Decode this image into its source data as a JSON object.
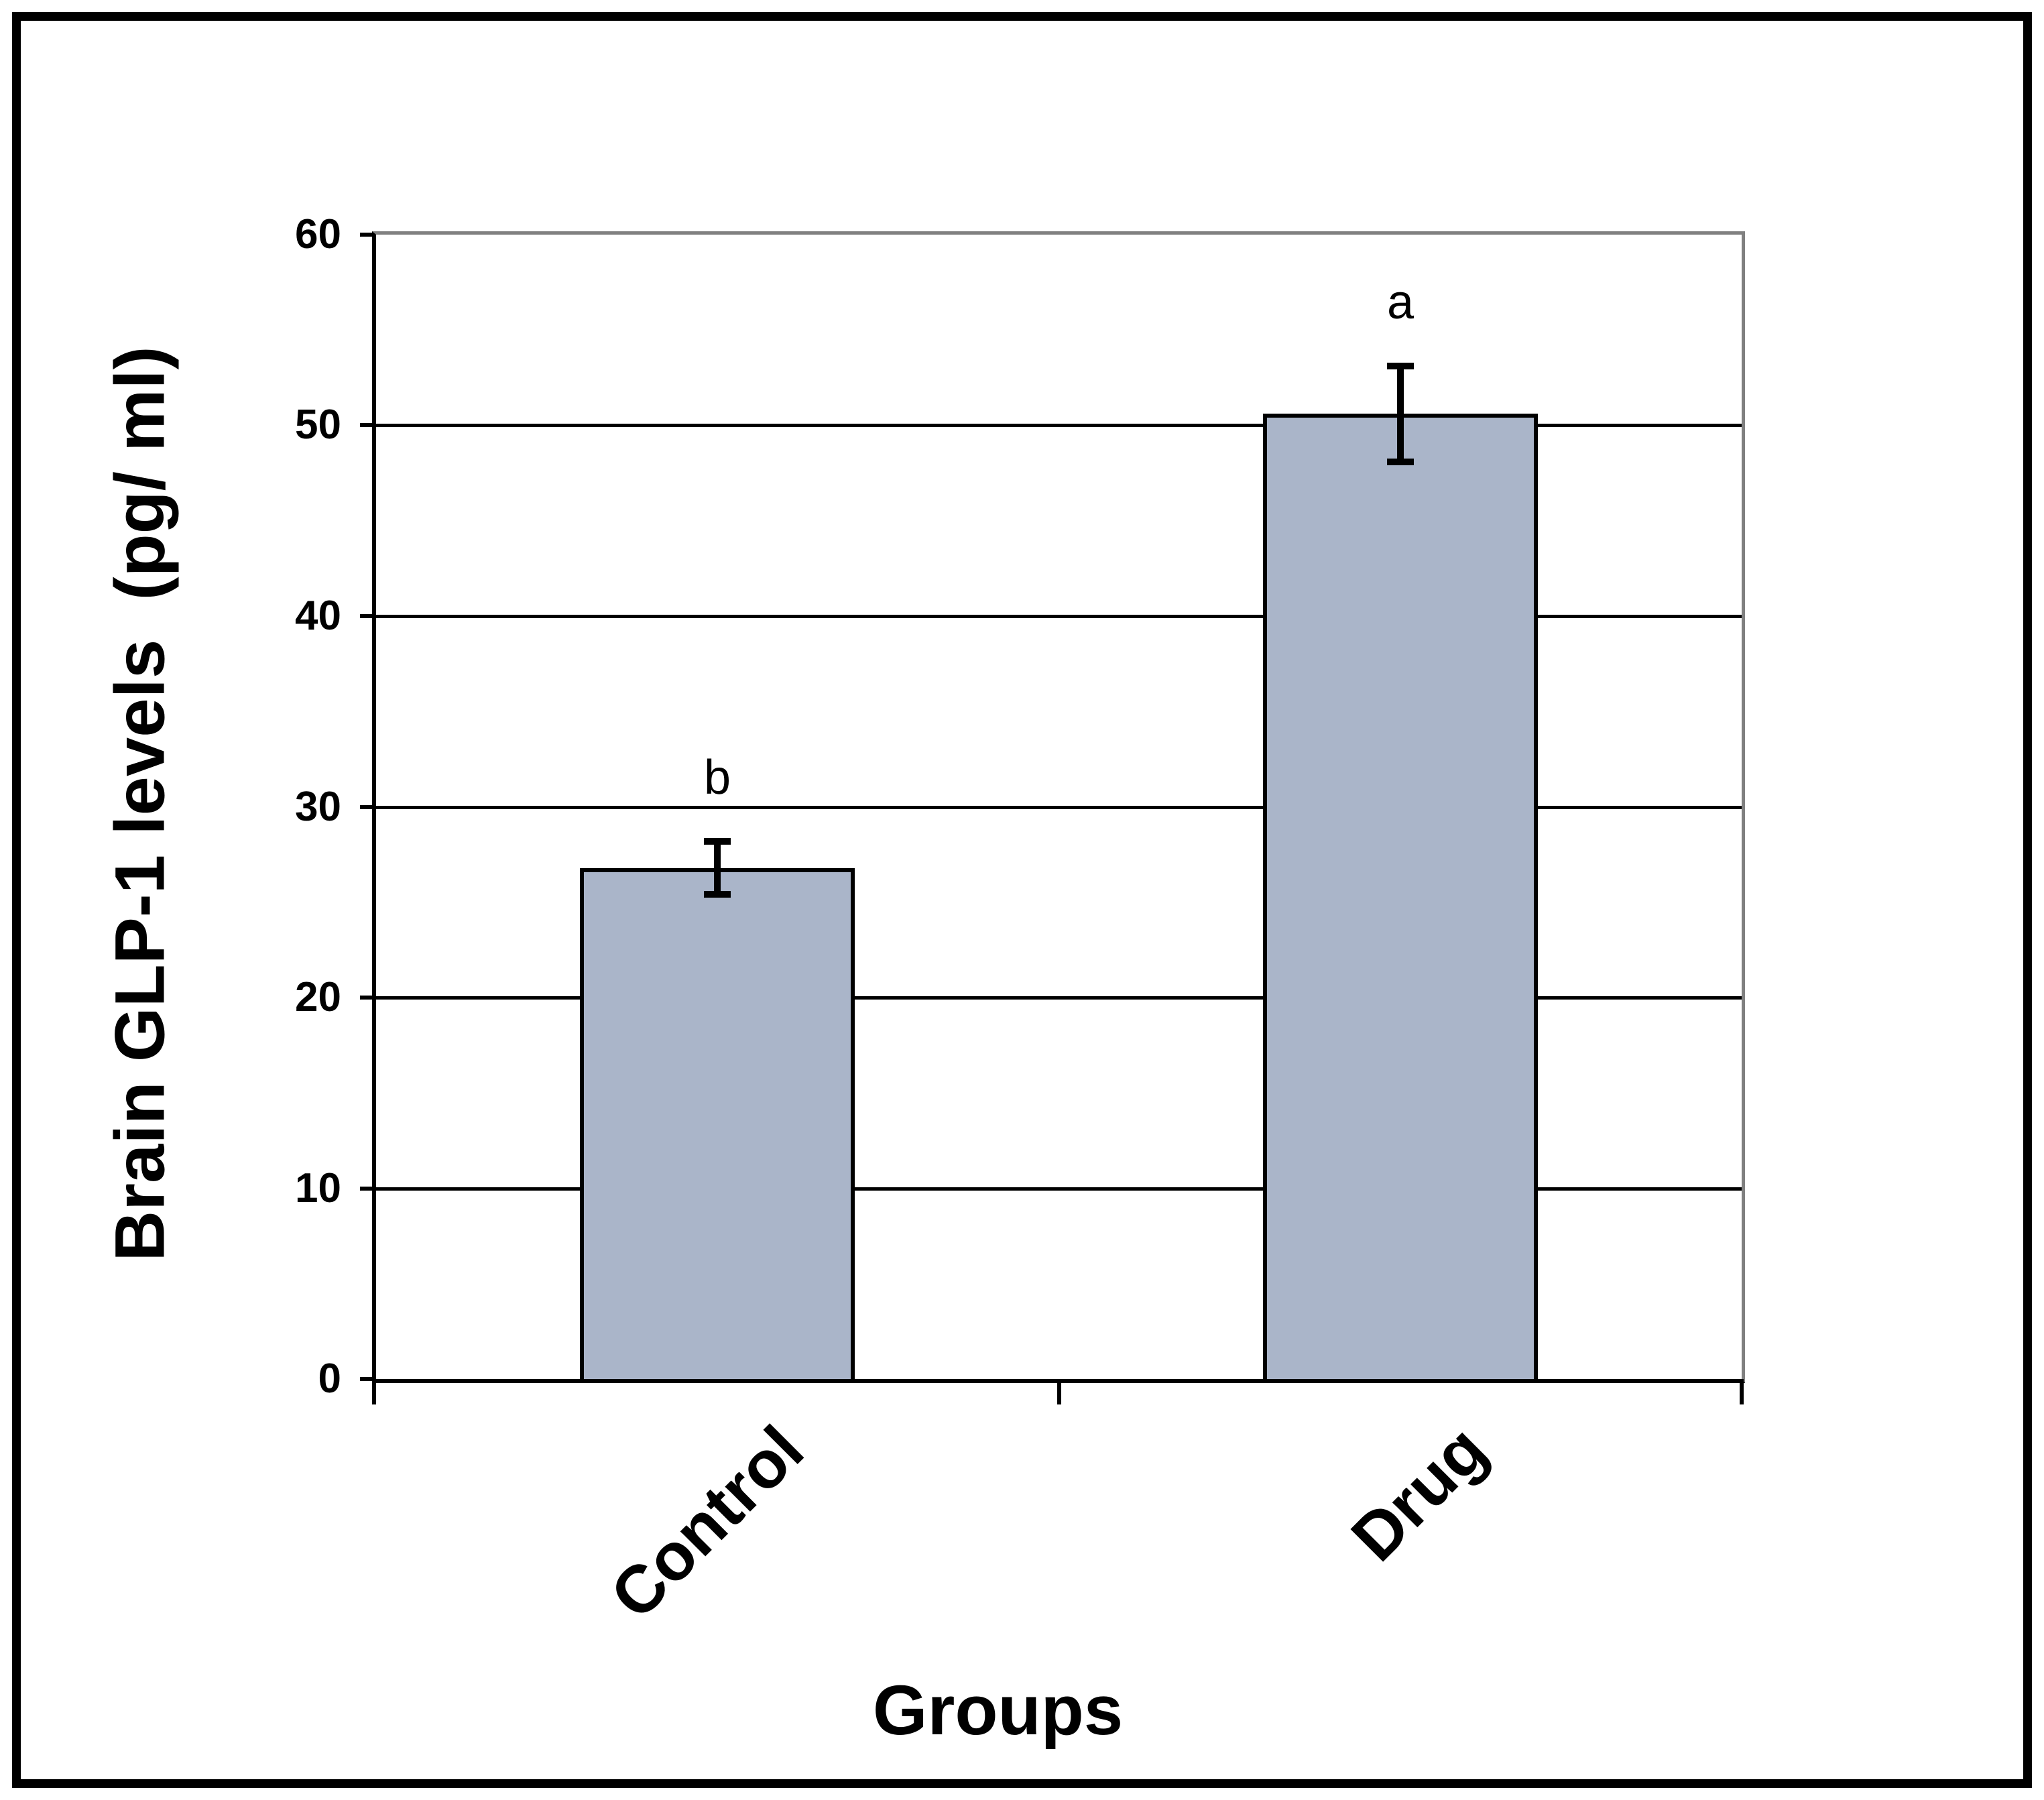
{
  "figure": {
    "background_color": "#FFFFFF",
    "border_color": "#000000"
  },
  "chart_data": {
    "type": "bar",
    "title": "",
    "xlabel": "Groups",
    "ylabel": "Brain GLP-1 levels  (pg/ ml)",
    "categories": [
      "Control",
      "Drug"
    ],
    "values": [
      26.8,
      50.6
    ],
    "errors": [
      1.4,
      2.5
    ],
    "annotations": [
      "b",
      "a"
    ],
    "ylim": [
      0,
      60
    ],
    "yticks": [
      0,
      10,
      20,
      30,
      40,
      50,
      60
    ],
    "grid": "horizontal",
    "legend_position": "none",
    "bar_fill_color": "#AAB5C9",
    "bar_border_color": "#000000",
    "gridline_color": "#000000",
    "axis_color": "#000000",
    "plot_frame_color": "#808080",
    "error_bar_color": "#000000",
    "category_label_rotation_deg": 45
  }
}
